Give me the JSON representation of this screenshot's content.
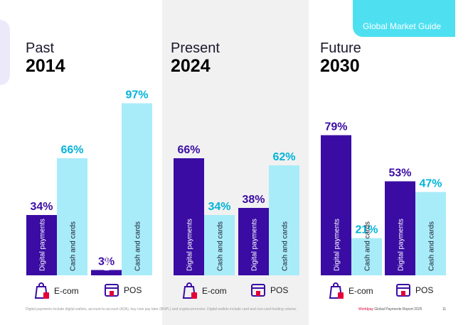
{
  "header": {
    "title": "Global Market Guide"
  },
  "panels": [
    {
      "label": "Past",
      "year": "2014"
    },
    {
      "label": "Present",
      "year": "2024"
    },
    {
      "label": "Future",
      "year": "2030"
    }
  ],
  "legend": {
    "ecom": "E-com",
    "pos": "POS"
  },
  "footnote": "Digital payments include digital wallets, account-to-account (A2A), buy now pay later (BNPL) and cryptocurrencies. Digital wallets include card and non-card funding volume.",
  "footer": {
    "brand": "Worldpay",
    "report": "Global Payments Report 2025",
    "page": "11"
  },
  "colors": {
    "digital": "#3a0ca3",
    "cash": "#a8ecf9",
    "digital_text": "#3a0ca3",
    "cash_text": "#00b4d8",
    "present_bg": "#f1f1f1"
  },
  "chart_data": {
    "type": "bar",
    "ylim": [
      0,
      100
    ],
    "series_names": [
      "Digital payments",
      "Cash and cards"
    ],
    "groups": [
      {
        "period": "2014",
        "channel": "E-com",
        "digital": 34,
        "cash": 66,
        "digital_label": "34%",
        "cash_label": "66%"
      },
      {
        "period": "2014",
        "channel": "POS",
        "digital": 3,
        "cash": 97,
        "digital_label": "3%",
        "cash_label": "97%"
      },
      {
        "period": "2024",
        "channel": "E-com",
        "digital": 66,
        "cash": 34,
        "digital_label": "66%",
        "cash_label": "34%"
      },
      {
        "period": "2024",
        "channel": "POS",
        "digital": 38,
        "cash": 62,
        "digital_label": "38%",
        "cash_label": "62%"
      },
      {
        "period": "2030",
        "channel": "E-com",
        "digital": 79,
        "cash": 21,
        "digital_label": "79%",
        "cash_label": "21%"
      },
      {
        "period": "2030",
        "channel": "POS",
        "digital": 53,
        "cash": 47,
        "digital_label": "53%",
        "cash_label": "47%"
      }
    ]
  }
}
